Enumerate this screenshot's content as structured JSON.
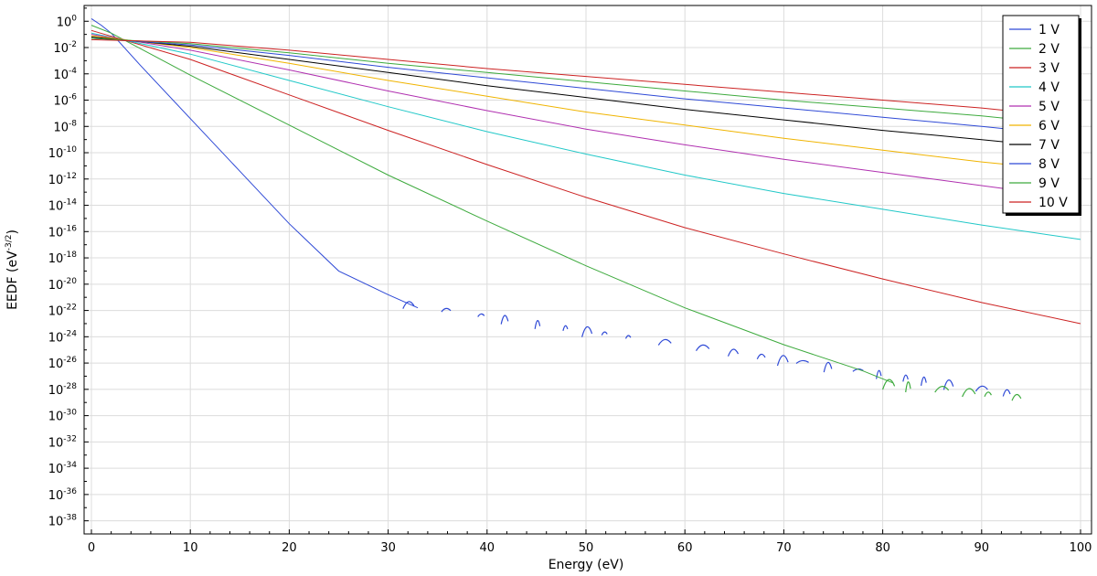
{
  "chart_data": {
    "type": "line",
    "xlabel": "Energy (eV)",
    "ylabel_base": "EEDF (eV",
    "ylabel_exp": "-3/2",
    "ylabel_close": ")",
    "xlim": [
      0,
      100
    ],
    "ylim_log10": [
      -39,
      1.2
    ],
    "y_scale": "log",
    "grid": true,
    "legend_position": "top-right",
    "x_ticks": [
      0,
      10,
      20,
      30,
      40,
      50,
      60,
      70,
      80,
      90,
      100
    ],
    "x_tick_labels": [
      "0",
      "10",
      "20",
      "30",
      "40",
      "50",
      "60",
      "70",
      "80",
      "90",
      "100"
    ],
    "y_tick_exponents": [
      0,
      -2,
      -4,
      -6,
      -8,
      -10,
      -12,
      -14,
      -16,
      -18,
      -20,
      -22,
      -24,
      -26,
      -28,
      -30,
      -32,
      -34,
      -36,
      -38
    ],
    "y_tick_base": "10",
    "y_tick_exp_labels": [
      "0",
      "-2",
      "-4",
      "-6",
      "-8",
      "-10",
      "-12",
      "-14",
      "-16",
      "-18",
      "-20",
      "-22",
      "-24",
      "-26",
      "-28",
      "-30",
      "-32",
      "-34",
      "-36",
      "-38"
    ],
    "series": [
      {
        "name": "1 V",
        "color": "#2e49d6",
        "x": [
          0,
          1,
          2,
          5,
          10,
          15,
          20,
          25,
          30,
          33
        ],
        "log10_y": [
          0.2,
          -0.3,
          -0.9,
          -3.4,
          -7.4,
          -11.4,
          -15.4,
          -19.0,
          -20.8,
          -21.8
        ],
        "noise_x": [
          31.5,
          95
        ],
        "noise_log10_y": [
          -21.5,
          -28.5
        ]
      },
      {
        "name": "2 V",
        "color": "#3daa3d",
        "x": [
          0,
          2,
          5,
          10,
          20,
          30,
          40,
          50,
          60,
          70,
          78,
          81
        ],
        "log10_y": [
          -0.3,
          -0.9,
          -2.1,
          -4.1,
          -7.9,
          -11.7,
          -15.2,
          -18.6,
          -21.8,
          -24.6,
          -26.6,
          -27.5
        ],
        "noise_x": [
          80,
          95
        ],
        "noise_log10_y": [
          -27.5,
          -28.7
        ]
      },
      {
        "name": "3 V",
        "color": "#cc2222",
        "x": [
          0,
          10,
          20,
          30,
          40,
          50,
          60,
          70,
          80,
          90,
          100
        ],
        "log10_y": [
          -0.7,
          -2.9,
          -5.6,
          -8.3,
          -10.9,
          -13.4,
          -15.7,
          -17.7,
          -19.6,
          -21.4,
          -23.0
        ]
      },
      {
        "name": "4 V",
        "color": "#22c8c8",
        "x": [
          0,
          10,
          20,
          30,
          40,
          50,
          60,
          70,
          80,
          90,
          100
        ],
        "log10_y": [
          -0.9,
          -2.5,
          -4.5,
          -6.5,
          -8.4,
          -10.1,
          -11.7,
          -13.1,
          -14.3,
          -15.5,
          -16.6
        ]
      },
      {
        "name": "5 V",
        "color": "#b030b0",
        "x": [
          0,
          10,
          20,
          30,
          40,
          50,
          60,
          70,
          80,
          90,
          94
        ],
        "log10_y": [
          -1.0,
          -2.2,
          -3.7,
          -5.3,
          -6.8,
          -8.2,
          -9.4,
          -10.5,
          -11.5,
          -12.5,
          -12.9
        ]
      },
      {
        "name": "6 V",
        "color": "#f0b400",
        "x": [
          0,
          10,
          20,
          30,
          40,
          50,
          60,
          70,
          80,
          90,
          94
        ],
        "log10_y": [
          -1.1,
          -2.0,
          -3.2,
          -4.5,
          -5.7,
          -6.9,
          -7.9,
          -8.9,
          -9.8,
          -10.7,
          -11.0
        ]
      },
      {
        "name": "7 V",
        "color": "#000000",
        "x": [
          0,
          10,
          20,
          30,
          40,
          50,
          60,
          70,
          80,
          90,
          94
        ],
        "log10_y": [
          -1.2,
          -1.9,
          -2.9,
          -3.9,
          -4.9,
          -5.8,
          -6.7,
          -7.5,
          -8.3,
          -9.0,
          -9.3
        ]
      },
      {
        "name": "8 V",
        "color": "#2e49d6",
        "x": [
          0,
          10,
          20,
          30,
          40,
          50,
          60,
          70,
          80,
          90,
          94
        ],
        "log10_y": [
          -1.3,
          -1.8,
          -2.6,
          -3.5,
          -4.3,
          -5.1,
          -5.9,
          -6.6,
          -7.3,
          -8.0,
          -8.3
        ]
      },
      {
        "name": "9 V",
        "color": "#3daa3d",
        "x": [
          0,
          10,
          20,
          30,
          40,
          50,
          60,
          70,
          80,
          90,
          94
        ],
        "log10_y": [
          -1.3,
          -1.7,
          -2.4,
          -3.2,
          -3.9,
          -4.6,
          -5.3,
          -6.0,
          -6.6,
          -7.2,
          -7.5
        ]
      },
      {
        "name": "10 V",
        "color": "#cc2222",
        "x": [
          0,
          10,
          20,
          30,
          40,
          50,
          60,
          70,
          80,
          90,
          94
        ],
        "log10_y": [
          -1.4,
          -1.6,
          -2.2,
          -2.9,
          -3.6,
          -4.2,
          -4.8,
          -5.4,
          -6.0,
          -6.6,
          -6.9
        ]
      }
    ]
  }
}
